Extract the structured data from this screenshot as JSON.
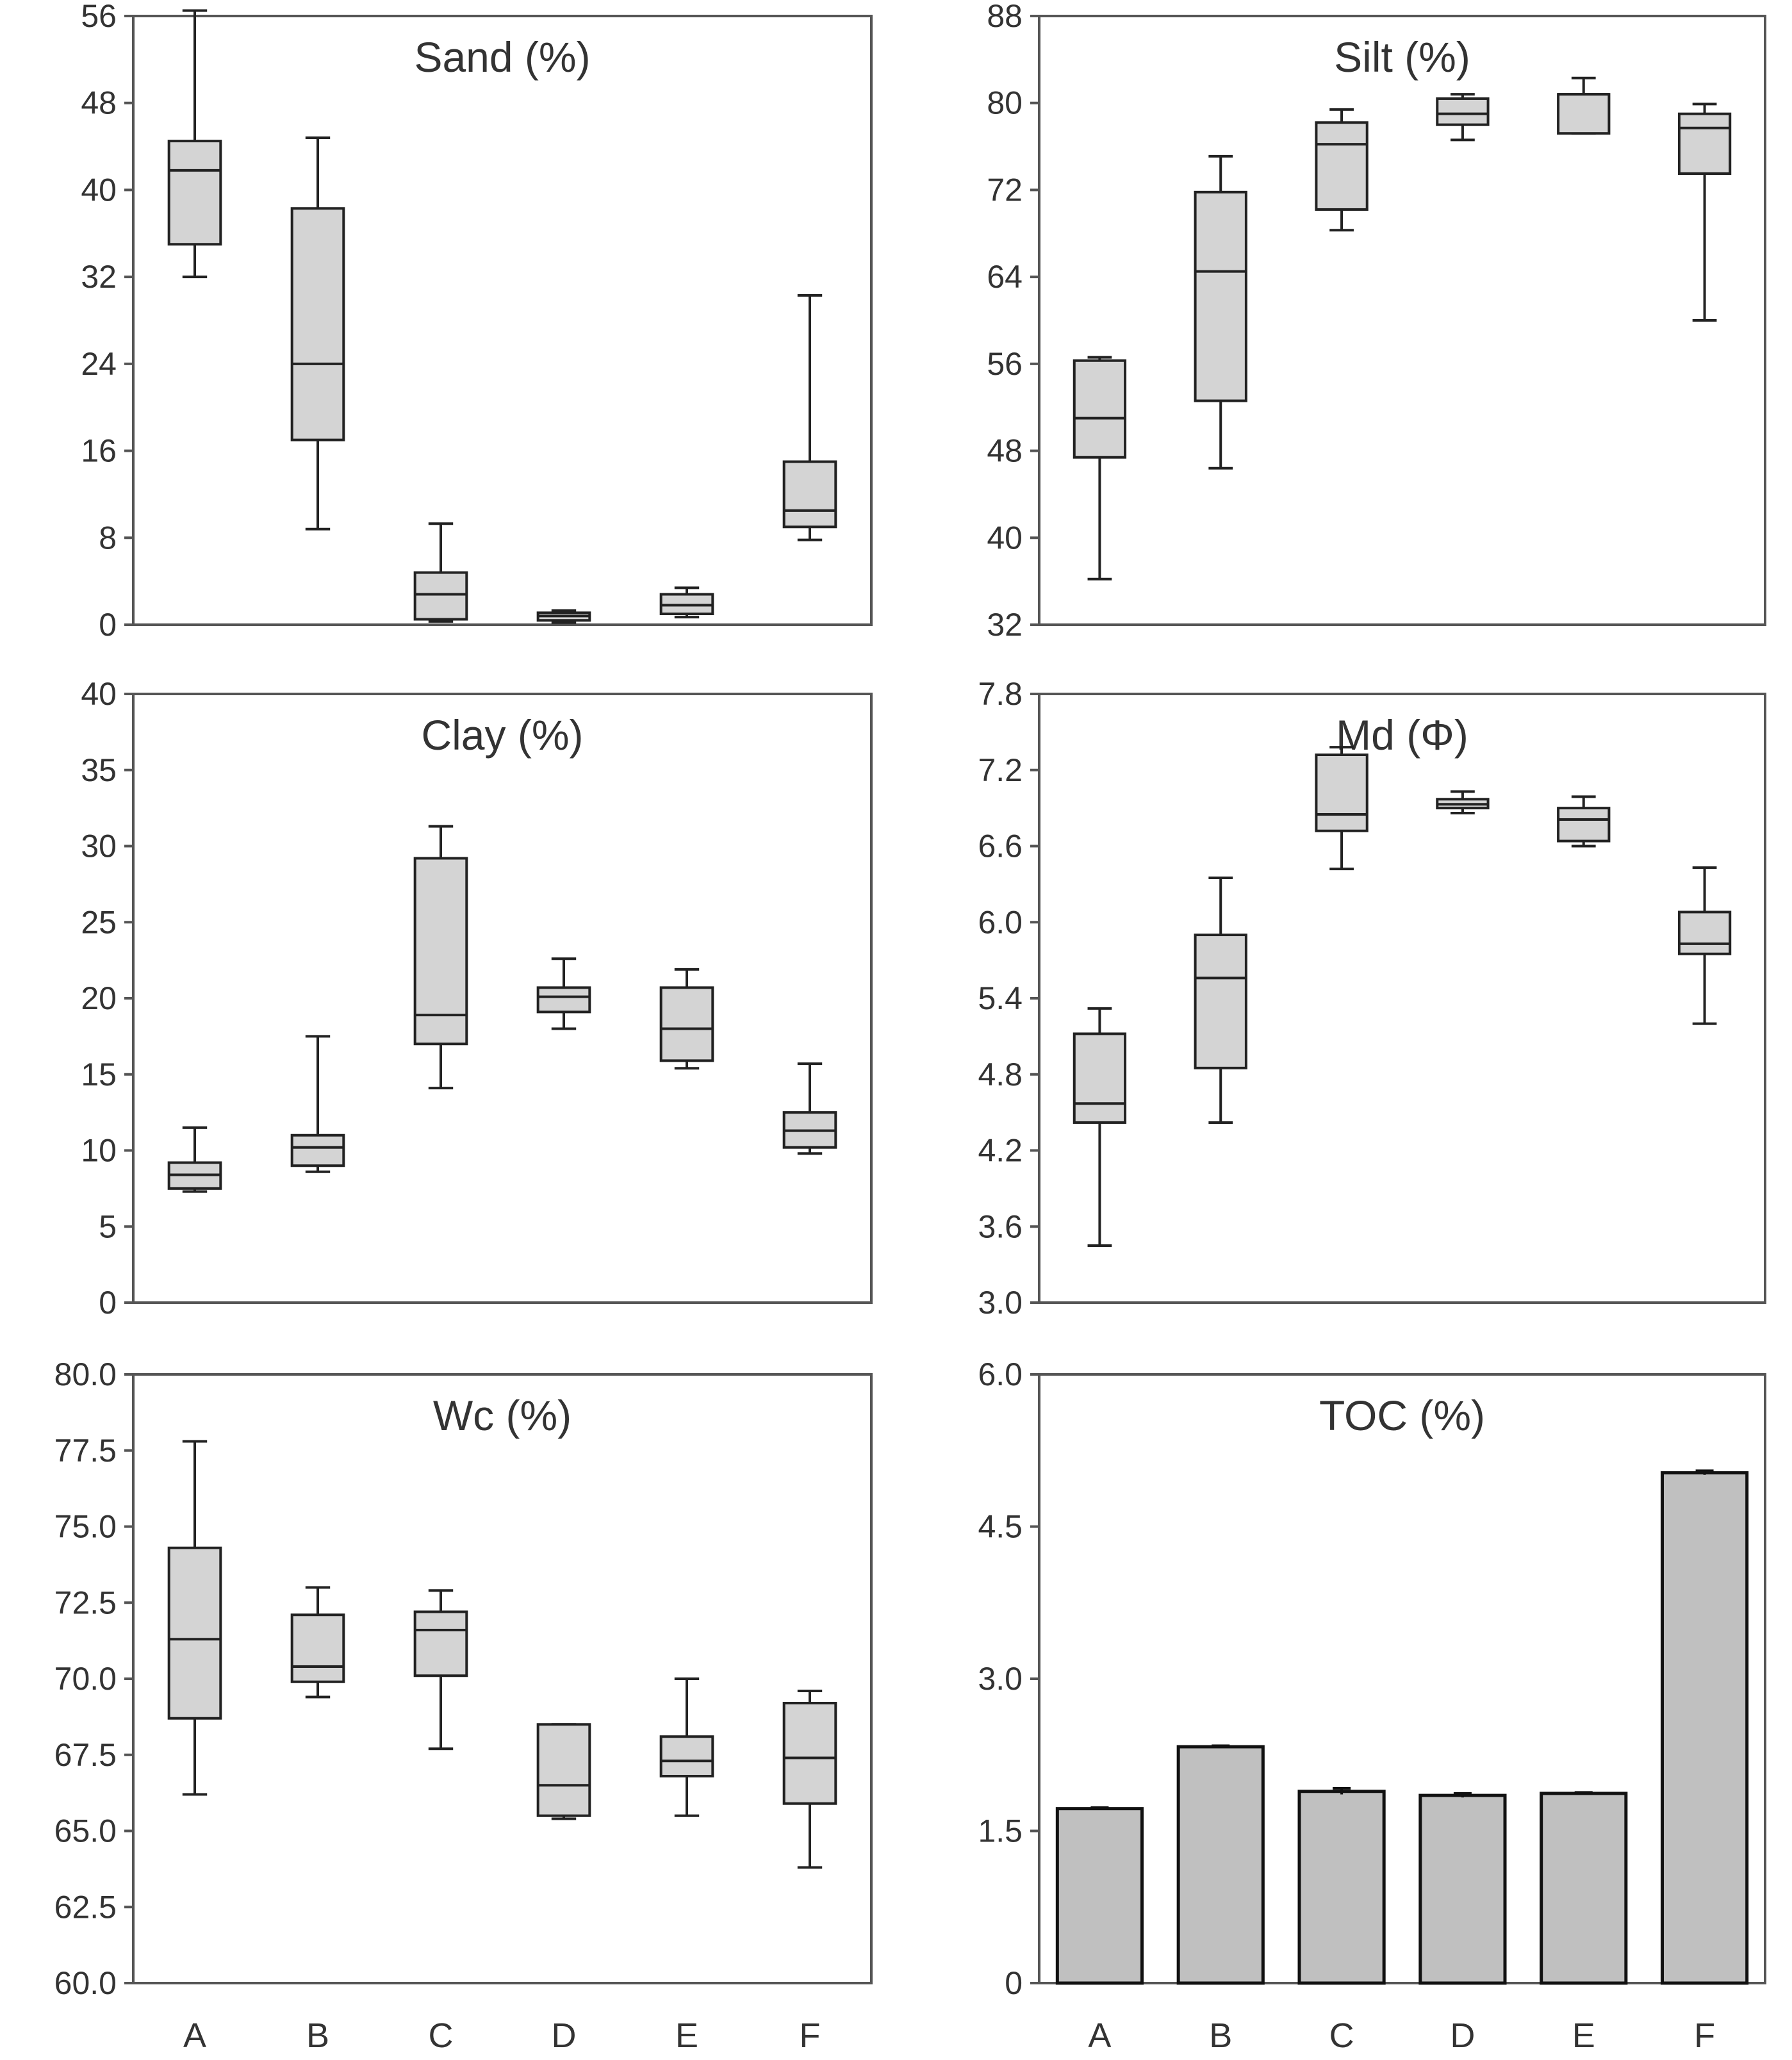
{
  "chart_data": [
    {
      "type": "boxplot",
      "title": "Sand (%)",
      "categories": [
        "A",
        "B",
        "C",
        "D",
        "E",
        "F"
      ],
      "ylim": [
        0,
        56
      ],
      "yticks": [
        0,
        8,
        16,
        24,
        32,
        40,
        48,
        56
      ],
      "ytick_labels": [
        "0",
        "8",
        "16",
        "24",
        "32",
        "40",
        "48",
        "56"
      ],
      "boxes": [
        {
          "min": 32,
          "q1": 35,
          "median": 41.8,
          "q3": 44.5,
          "max": 56.5
        },
        {
          "min": 8.8,
          "q1": 17,
          "median": 24,
          "q3": 38.3,
          "max": 44.8
        },
        {
          "min": 0.3,
          "q1": 0.5,
          "median": 2.8,
          "q3": 4.8,
          "max": 9.3
        },
        {
          "min": 0.2,
          "q1": 0.4,
          "median": 0.8,
          "q3": 1.1,
          "max": 1.3
        },
        {
          "min": 0.7,
          "q1": 1,
          "median": 1.8,
          "q3": 2.8,
          "max": 3.4
        },
        {
          "min": 7.8,
          "q1": 9,
          "median": 10.5,
          "q3": 15,
          "max": 30.3
        }
      ]
    },
    {
      "type": "boxplot",
      "title": "Silt (%)",
      "categories": [
        "A",
        "B",
        "C",
        "D",
        "E",
        "F"
      ],
      "ylim": [
        32,
        88
      ],
      "yticks": [
        32,
        40,
        48,
        56,
        64,
        72,
        80,
        88
      ],
      "ytick_labels": [
        "32",
        "40",
        "48",
        "56",
        "64",
        "72",
        "80",
        "88"
      ],
      "boxes": [
        {
          "min": 36.2,
          "q1": 47.4,
          "median": 51,
          "q3": 56.3,
          "max": 56.6
        },
        {
          "min": 46.4,
          "q1": 52.6,
          "median": 64.5,
          "q3": 71.8,
          "max": 75.1
        },
        {
          "min": 68.3,
          "q1": 70.2,
          "median": 76.2,
          "q3": 78.2,
          "max": 79.4
        },
        {
          "min": 76.6,
          "q1": 78,
          "median": 79,
          "q3": 80.4,
          "max": 80.8
        },
        {
          "min": 77.2,
          "q1": 77.2,
          "median": 80.8,
          "q3": 80.8,
          "max": 82.3
        },
        {
          "min": 60,
          "q1": 73.5,
          "median": 77.7,
          "q3": 79,
          "max": 79.9
        }
      ]
    },
    {
      "type": "boxplot",
      "title": "Clay (%)",
      "categories": [
        "A",
        "B",
        "C",
        "D",
        "E",
        "F"
      ],
      "ylim": [
        0,
        40
      ],
      "yticks": [
        0,
        5,
        10,
        15,
        20,
        25,
        30,
        35,
        40
      ],
      "ytick_labels": [
        "0",
        "5",
        "10",
        "15",
        "20",
        "25",
        "30",
        "35",
        "40"
      ],
      "boxes": [
        {
          "min": 7.3,
          "q1": 7.5,
          "median": 8.4,
          "q3": 9.2,
          "max": 11.5
        },
        {
          "min": 8.6,
          "q1": 9,
          "median": 10.2,
          "q3": 11,
          "max": 17.5
        },
        {
          "min": 14.1,
          "q1": 17,
          "median": 18.9,
          "q3": 29.2,
          "max": 31.3
        },
        {
          "min": 18,
          "q1": 19.1,
          "median": 20.1,
          "q3": 20.7,
          "max": 22.6
        },
        {
          "min": 15.4,
          "q1": 15.9,
          "median": 18,
          "q3": 20.7,
          "max": 21.9
        },
        {
          "min": 9.8,
          "q1": 10.2,
          "median": 11.3,
          "q3": 12.5,
          "max": 15.7
        }
      ]
    },
    {
      "type": "boxplot",
      "title": "Md (Φ)",
      "categories": [
        "A",
        "B",
        "C",
        "D",
        "E",
        "F"
      ],
      "ylim": [
        3.0,
        7.8
      ],
      "yticks": [
        3.0,
        3.6,
        4.2,
        4.8,
        5.4,
        6.0,
        6.6,
        7.2,
        7.8
      ],
      "ytick_labels": [
        "3.0",
        "3.6",
        "4.2",
        "4.8",
        "5.4",
        "6.0",
        "6.6",
        "7.2",
        "7.8"
      ],
      "boxes": [
        {
          "min": 3.45,
          "q1": 4.42,
          "median": 4.57,
          "q3": 5.12,
          "max": 5.32
        },
        {
          "min": 4.42,
          "q1": 4.85,
          "median": 5.56,
          "q3": 5.9,
          "max": 6.35
        },
        {
          "min": 6.42,
          "q1": 6.72,
          "median": 6.85,
          "q3": 7.32,
          "max": 7.38
        },
        {
          "min": 6.86,
          "q1": 6.9,
          "median": 6.93,
          "q3": 6.97,
          "max": 7.03
        },
        {
          "min": 6.6,
          "q1": 6.64,
          "median": 6.81,
          "q3": 6.9,
          "max": 6.99
        },
        {
          "min": 5.2,
          "q1": 5.75,
          "median": 5.83,
          "q3": 6.08,
          "max": 6.43
        }
      ]
    },
    {
      "type": "boxplot",
      "title": "Wc (%)",
      "categories": [
        "A",
        "B",
        "C",
        "D",
        "E",
        "F"
      ],
      "ylim": [
        60,
        80
      ],
      "yticks": [
        60,
        62.5,
        65,
        67.5,
        70,
        72.5,
        75,
        77.5,
        80
      ],
      "ytick_labels": [
        "60.0",
        "62.5",
        "65.0",
        "67.5",
        "70.0",
        "72.5",
        "75.0",
        "77.5",
        "80.0"
      ],
      "boxes": [
        {
          "min": 66.2,
          "q1": 68.7,
          "median": 71.3,
          "q3": 74.3,
          "max": 77.8
        },
        {
          "min": 69.4,
          "q1": 69.9,
          "median": 70.4,
          "q3": 72.1,
          "max": 73
        },
        {
          "min": 67.7,
          "q1": 70.1,
          "median": 71.6,
          "q3": 72.2,
          "max": 72.9
        },
        {
          "min": 65.4,
          "q1": 65.5,
          "median": 66.5,
          "q3": 68.5,
          "max": 68.5
        },
        {
          "min": 65.5,
          "q1": 66.8,
          "median": 67.3,
          "q3": 68.1,
          "max": 70
        },
        {
          "min": 63.8,
          "q1": 65.9,
          "median": 67.4,
          "q3": 69.2,
          "max": 69.6
        }
      ]
    },
    {
      "type": "bar",
      "title": "TOC (%)",
      "categories": [
        "A",
        "B",
        "C",
        "D",
        "E",
        "F"
      ],
      "ylim": [
        0,
        6
      ],
      "yticks": [
        0,
        1.5,
        3.0,
        4.5,
        6.0
      ],
      "ytick_labels": [
        "0",
        "1.5",
        "3.0",
        "4.5",
        "6.0"
      ],
      "values": [
        1.72,
        2.33,
        1.89,
        1.85,
        1.87,
        5.03
      ],
      "errors": [
        0.01,
        0.01,
        0.03,
        0.02,
        0.01,
        0.02
      ]
    }
  ],
  "x_axis_labels": [
    "A",
    "B",
    "C",
    "D",
    "E",
    "F"
  ]
}
